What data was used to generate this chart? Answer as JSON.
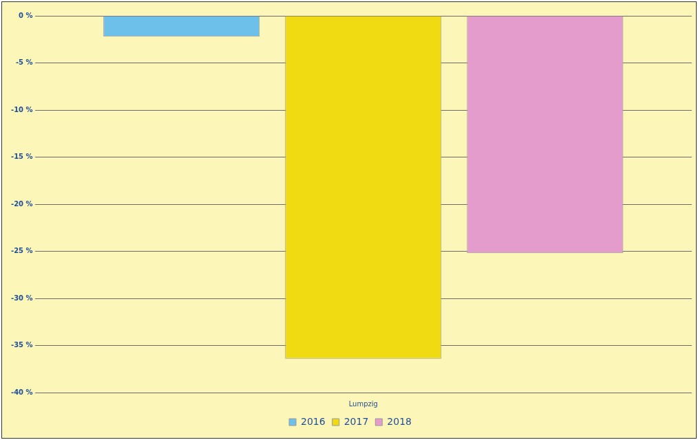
{
  "chart_data": {
    "type": "bar",
    "categories": [
      "Lumpzig"
    ],
    "series": [
      {
        "name": "2016",
        "color": "#6cc0ea",
        "values": [
          -2.2
        ]
      },
      {
        "name": "2017",
        "color": "#f0da12",
        "values": [
          -36.4
        ]
      },
      {
        "name": "2018",
        "color": "#e49ccc",
        "values": [
          -25.2
        ]
      }
    ],
    "ylim": [
      -40,
      0
    ],
    "yticks": [
      {
        "value": 0,
        "label": "0 %"
      },
      {
        "value": -5,
        "label": "-5 %"
      },
      {
        "value": -10,
        "label": "-10 %"
      },
      {
        "value": -15,
        "label": "-15 %"
      },
      {
        "value": -20,
        "label": "-20 %"
      },
      {
        "value": -25,
        "label": "-25 %"
      },
      {
        "value": -30,
        "label": "-30 %"
      },
      {
        "value": -35,
        "label": "-35 %"
      },
      {
        "value": -40,
        "label": "-40 %"
      }
    ],
    "grid": "y",
    "legend": "bottom"
  }
}
